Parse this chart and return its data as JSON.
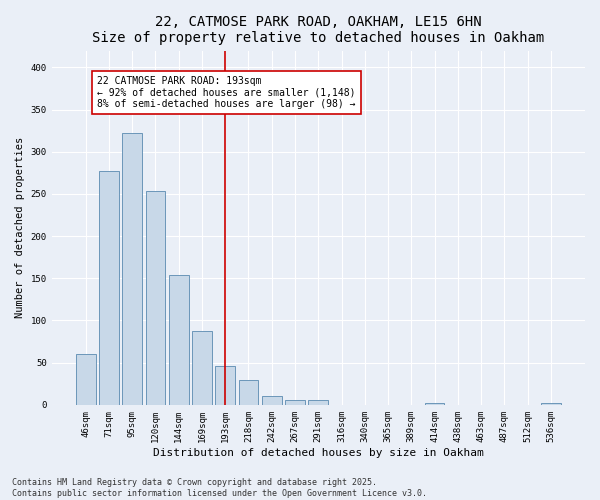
{
  "title": "22, CATMOSE PARK ROAD, OAKHAM, LE15 6HN",
  "subtitle": "Size of property relative to detached houses in Oakham",
  "xlabel": "Distribution of detached houses by size in Oakham",
  "ylabel": "Number of detached properties",
  "bar_labels": [
    "46sqm",
    "71sqm",
    "95sqm",
    "120sqm",
    "144sqm",
    "169sqm",
    "193sqm",
    "218sqm",
    "242sqm",
    "267sqm",
    "291sqm",
    "316sqm",
    "340sqm",
    "365sqm",
    "389sqm",
    "414sqm",
    "438sqm",
    "463sqm",
    "487sqm",
    "512sqm",
    "536sqm"
  ],
  "bar_values": [
    60,
    277,
    322,
    254,
    154,
    88,
    46,
    30,
    10,
    6,
    6,
    0,
    0,
    0,
    0,
    2,
    0,
    0,
    0,
    0,
    2
  ],
  "bar_color": "#c8d8e8",
  "bar_edge_color": "#5a8ab0",
  "highlight_index": 6,
  "highlight_color": "#cc0000",
  "annotation_lines": [
    "22 CATMOSE PARK ROAD: 193sqm",
    "← 92% of detached houses are smaller (1,148)",
    "8% of semi-detached houses are larger (98) →"
  ],
  "ylim": [
    0,
    420
  ],
  "yticks": [
    0,
    50,
    100,
    150,
    200,
    250,
    300,
    350,
    400
  ],
  "footnote1": "Contains HM Land Registry data © Crown copyright and database right 2025.",
  "footnote2": "Contains public sector information licensed under the Open Government Licence v3.0.",
  "title_fontsize": 10,
  "xlabel_fontsize": 8,
  "ylabel_fontsize": 7.5,
  "tick_fontsize": 6.5,
  "annot_fontsize": 7,
  "footnote_fontsize": 6,
  "bg_color": "#eaeff7",
  "plot_bg_color": "#eaeff7"
}
